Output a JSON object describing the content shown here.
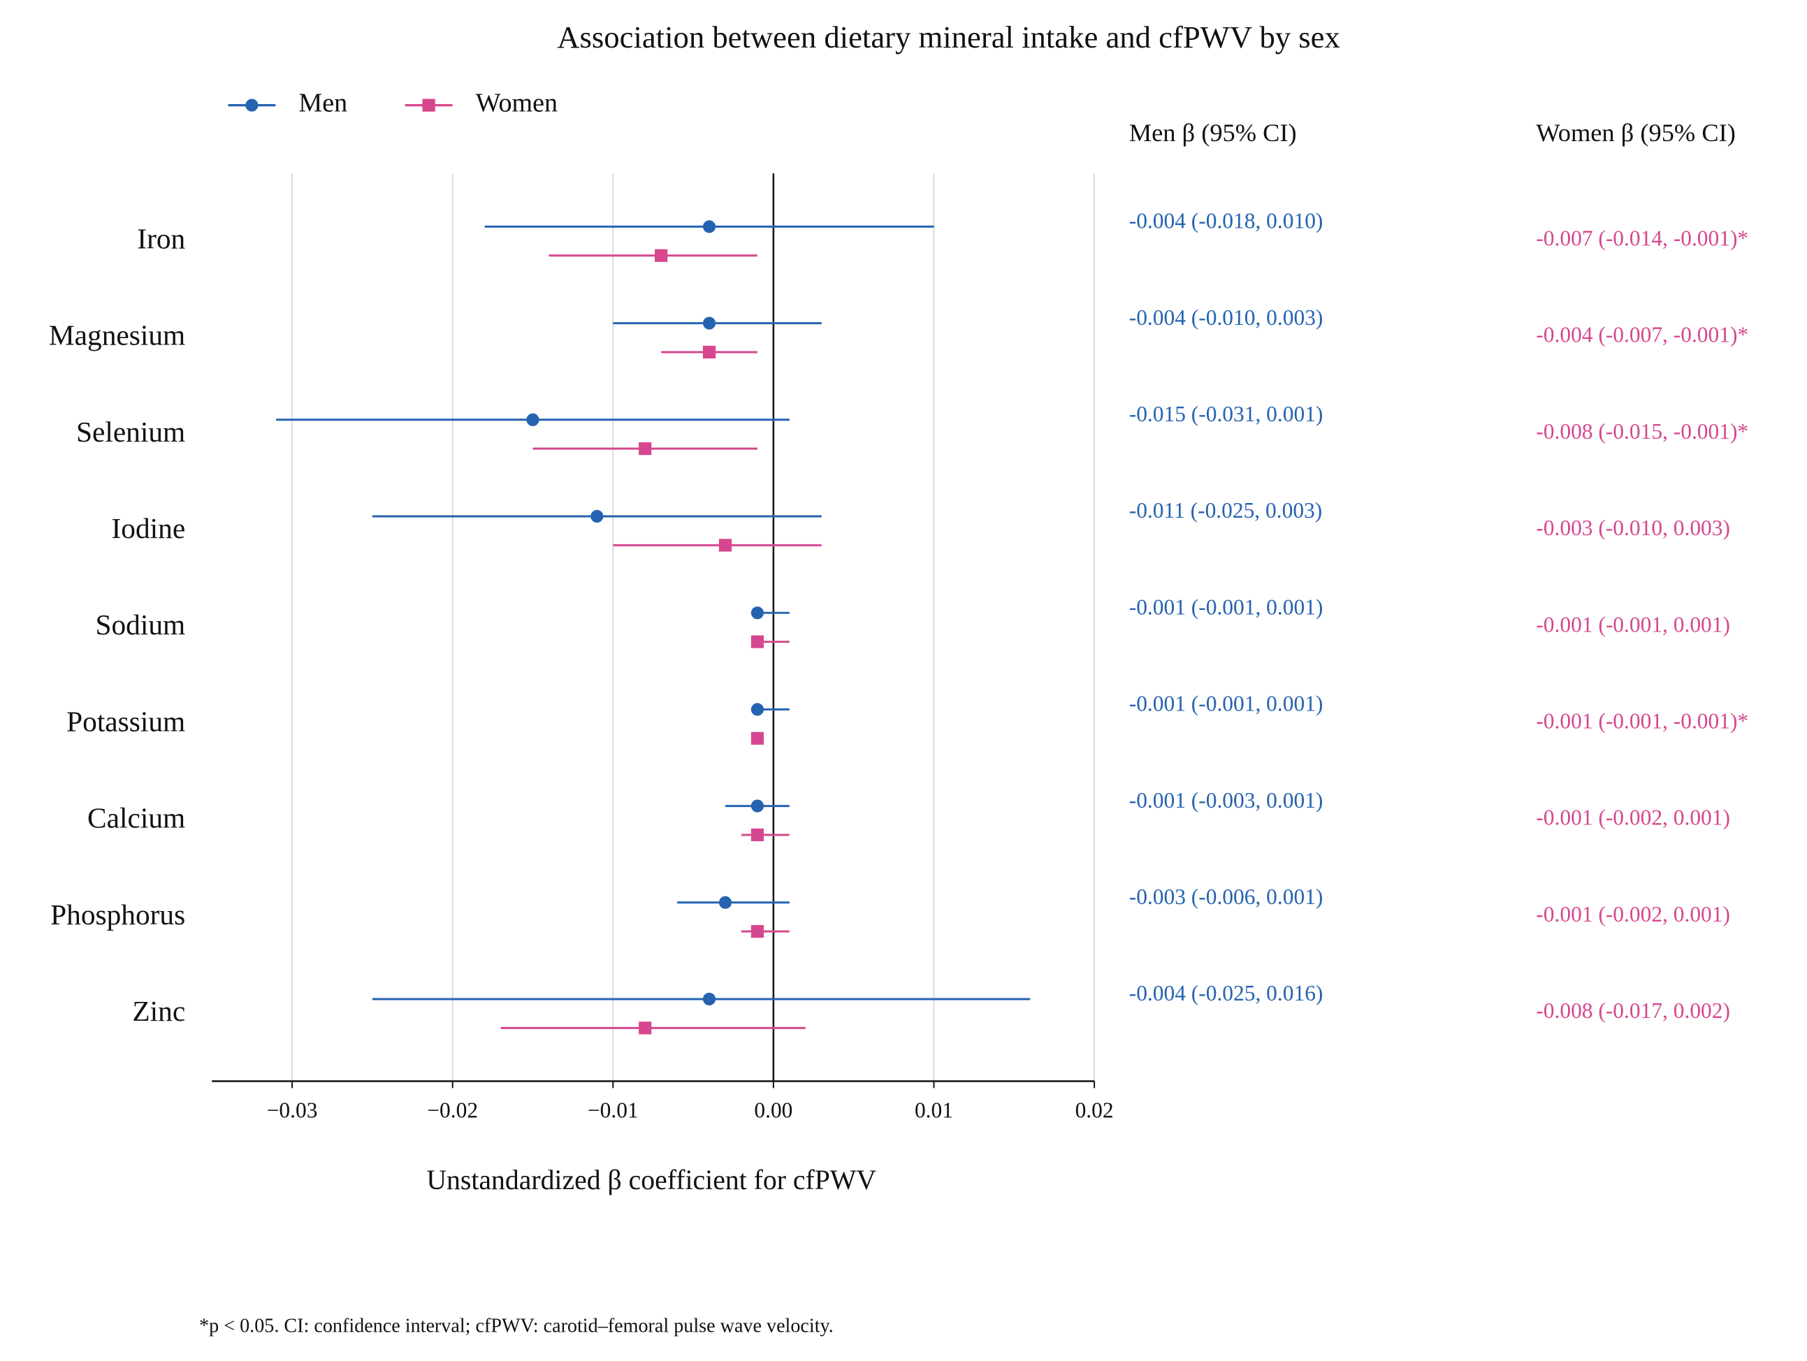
{
  "chart_data": {
    "type": "forest",
    "title": "Association between dietary mineral intake and cfPWV by sex",
    "xlabel": "Unstandardized β coefficient for cfPWV",
    "categories": [
      "Iron",
      "Magnesium",
      "Selenium",
      "Iodine",
      "Sodium",
      "Potassium",
      "Calcium",
      "Phosphorus",
      "Zinc"
    ],
    "series": [
      {
        "name": "Men",
        "color": "#2563b0",
        "marker": "circle",
        "values": [
          -0.004,
          -0.004,
          -0.015,
          -0.011,
          -0.001,
          -0.001,
          -0.001,
          -0.003,
          -0.004
        ],
        "lower": [
          -0.018,
          -0.01,
          -0.031,
          -0.025,
          -0.001,
          -0.001,
          -0.003,
          -0.006,
          -0.025
        ],
        "upper": [
          0.01,
          0.003,
          0.001,
          0.003,
          0.001,
          0.001,
          0.001,
          0.001,
          0.016
        ],
        "value_labels": [
          "-0.004 (-0.018, 0.010)",
          "-0.004 (-0.010, 0.003)",
          "-0.015 (-0.031, 0.001)",
          "-0.011 (-0.025, 0.003)",
          "-0.001 (-0.001, 0.001)",
          "-0.001 (-0.001, 0.001)",
          "-0.001 (-0.003, 0.001)",
          "-0.003 (-0.006, 0.001)",
          "-0.004 (-0.025, 0.016)"
        ]
      },
      {
        "name": "Women",
        "color": "#d6478f",
        "marker": "square",
        "values": [
          -0.007,
          -0.004,
          -0.008,
          -0.003,
          -0.001,
          -0.001,
          -0.001,
          -0.001,
          -0.008
        ],
        "lower": [
          -0.014,
          -0.007,
          -0.015,
          -0.01,
          -0.001,
          -0.001,
          -0.002,
          -0.002,
          -0.017
        ],
        "upper": [
          -0.001,
          -0.001,
          -0.001,
          0.003,
          0.001,
          -0.001,
          0.001,
          0.001,
          0.002
        ],
        "value_labels": [
          "-0.007 (-0.014, -0.001)*",
          "-0.004 (-0.007, -0.001)*",
          "-0.008 (-0.015, -0.001)*",
          "-0.003 (-0.010, 0.003)",
          "-0.001 (-0.001, 0.001)",
          "-0.001 (-0.001, -0.001)*",
          "-0.001 (-0.002, 0.001)",
          "-0.001 (-0.002, 0.001)",
          "-0.008 (-0.017, 0.002)"
        ]
      }
    ],
    "column_headers": [
      "Men β (95% CI)",
      "Women β (95% CI)"
    ],
    "xlim": [
      -0.035,
      0.02
    ],
    "xticks": [
      {
        "value": -0.03,
        "label": "−0.03"
      },
      {
        "value": -0.02,
        "label": "−0.02"
      },
      {
        "value": -0.01,
        "label": "−0.01"
      },
      {
        "value": 0,
        "label": "0.00"
      },
      0.01,
      0.02
    ],
    "grid": true,
    "legend": "top-left",
    "footnote": "*p < 0.05. CI: confidence interval; cfPWV: carotid–femoral pulse wave velocity."
  }
}
